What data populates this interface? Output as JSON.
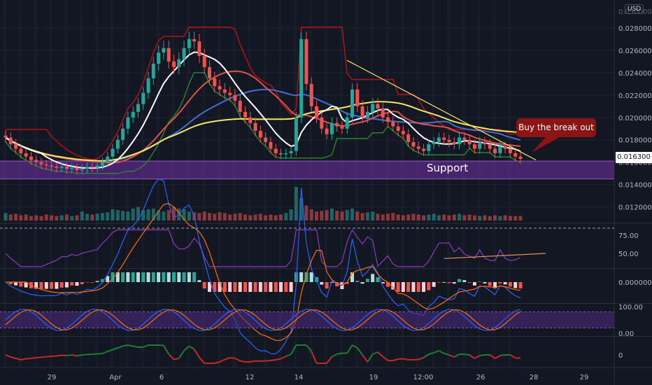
{
  "currency": "USD",
  "last_price": "0.016300",
  "annotations": {
    "callout": "Buy the break out",
    "support": "Support"
  },
  "colors": {
    "background": "#131722",
    "up": "#26a69a",
    "down": "#ef5350",
    "sma_white": "#ffffff",
    "ema_yellow": "#f5e663",
    "ma_red": "#e0514a",
    "ma_blue": "#3f6fd6",
    "ichimoku_dark_red": "#b2121a",
    "ichimoku_green": "#2e7d32",
    "support_zone": "#5b2a86",
    "rsi_line": "#8e3bbf",
    "trendline": "#f5e663",
    "callout": "#8b1414"
  },
  "chart_data": [
    {
      "type": "candlestick",
      "panel": "price",
      "y_ticks": [
        "0.028000",
        "0.026000",
        "0.024000",
        "0.022000",
        "0.020000",
        "0.018000",
        "0.016000",
        "0.014000",
        "0.012000"
      ],
      "ylim": [
        0.0106,
        0.0305
      ],
      "x_ticks": [
        "29",
        "Apr",
        "6",
        "12",
        "14",
        "19",
        "12:00",
        "26",
        "28",
        "29"
      ],
      "close": [
        0.0182,
        0.0176,
        0.0172,
        0.0168,
        0.0165,
        0.0162,
        0.016,
        0.0158,
        0.0157,
        0.0156,
        0.0155,
        0.0156,
        0.0154,
        0.0155,
        0.0153,
        0.0154,
        0.0156,
        0.0155,
        0.0157,
        0.016,
        0.0165,
        0.0172,
        0.018,
        0.019,
        0.02,
        0.0205,
        0.0212,
        0.0222,
        0.0235,
        0.0248,
        0.0258,
        0.0262,
        0.025,
        0.0245,
        0.0252,
        0.0262,
        0.027,
        0.0268,
        0.0255,
        0.0245,
        0.0235,
        0.0228,
        0.0225,
        0.0222,
        0.022,
        0.0215,
        0.0205,
        0.02,
        0.0195,
        0.0188,
        0.0182,
        0.0178,
        0.0172,
        0.0168,
        0.0167,
        0.0168,
        0.017,
        0.02,
        0.027,
        0.023,
        0.021,
        0.02,
        0.019,
        0.0185,
        0.0195,
        0.0192,
        0.019,
        0.02,
        0.0225,
        0.021,
        0.02,
        0.0205,
        0.0212,
        0.0208,
        0.02,
        0.0196,
        0.0192,
        0.0188,
        0.0185,
        0.0178,
        0.0174,
        0.0172,
        0.017,
        0.0176,
        0.0178,
        0.0182,
        0.018,
        0.0178,
        0.0176,
        0.0182,
        0.018,
        0.0176,
        0.0172,
        0.0178,
        0.0176,
        0.0172,
        0.0168,
        0.0174,
        0.0172,
        0.0168,
        0.0165,
        0.0163
      ],
      "volume": [
        1.0,
        0.8,
        0.9,
        0.7,
        0.8,
        0.6,
        0.7,
        0.6,
        0.8,
        0.7,
        0.6,
        0.7,
        0.8,
        0.6,
        0.7,
        1.2,
        0.9,
        0.8,
        0.9,
        1.0,
        1.1,
        1.5,
        1.4,
        1.3,
        1.2,
        1.6,
        1.8,
        1.4,
        1.5,
        1.6,
        1.3,
        1.2,
        1.4,
        1.8,
        1.6,
        1.5,
        1.2,
        1.1,
        1.0,
        1.2,
        1.0,
        0.9,
        1.1,
        1.0,
        0.8,
        0.9,
        1.0,
        0.8,
        0.7,
        0.8,
        0.9,
        0.7,
        0.8,
        0.7,
        0.8,
        1.0,
        1.5,
        4.5,
        3.0,
        2.0,
        1.5,
        1.2,
        1.3,
        1.4,
        1.6,
        1.3,
        1.2,
        1.4,
        1.6,
        1.2,
        1.0,
        1.1,
        1.2,
        0.9,
        0.8,
        0.9,
        1.0,
        0.8,
        0.7,
        0.8,
        0.9,
        0.8,
        0.7,
        0.8,
        0.9,
        0.7,
        0.8,
        0.7,
        0.8,
        0.9,
        0.7,
        0.8,
        0.7,
        0.6,
        0.7,
        0.6,
        0.7,
        0.6,
        0.7,
        0.6,
        0.6,
        0.6
      ]
    },
    {
      "type": "line",
      "panel": "rsi",
      "y_ticks": [
        "75.00",
        "50.00"
      ],
      "ylim": [
        30,
        90
      ]
    },
    {
      "type": "bar",
      "panel": "macd",
      "y_ticks": [
        "0.000000"
      ]
    },
    {
      "type": "line",
      "panel": "stoch",
      "y_ticks": [
        "100.00",
        "0.00"
      ],
      "ylim": [
        -10,
        110
      ]
    },
    {
      "type": "line",
      "panel": "momentum",
      "y_ticks": [
        "0"
      ]
    }
  ]
}
